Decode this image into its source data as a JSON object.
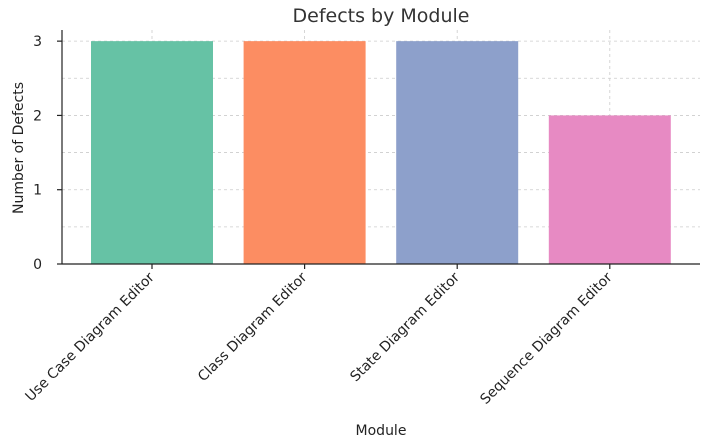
{
  "chart_data": {
    "type": "bar",
    "title": "Defects by Module",
    "xlabel": "Module",
    "ylabel": "Number of Defects",
    "categories": [
      "Use Case Diagram Editor",
      "Class Diagram Editor",
      "State Diagram Editor",
      "Sequence Diagram Editor"
    ],
    "values": [
      3,
      3,
      3,
      2
    ],
    "colors": [
      "#66c2a5",
      "#fc8d62",
      "#8da0cb",
      "#e78ac3"
    ],
    "ylim": [
      0,
      3.15
    ],
    "yticks": [
      0,
      1,
      2,
      3
    ],
    "grid": true,
    "legend": "none"
  }
}
